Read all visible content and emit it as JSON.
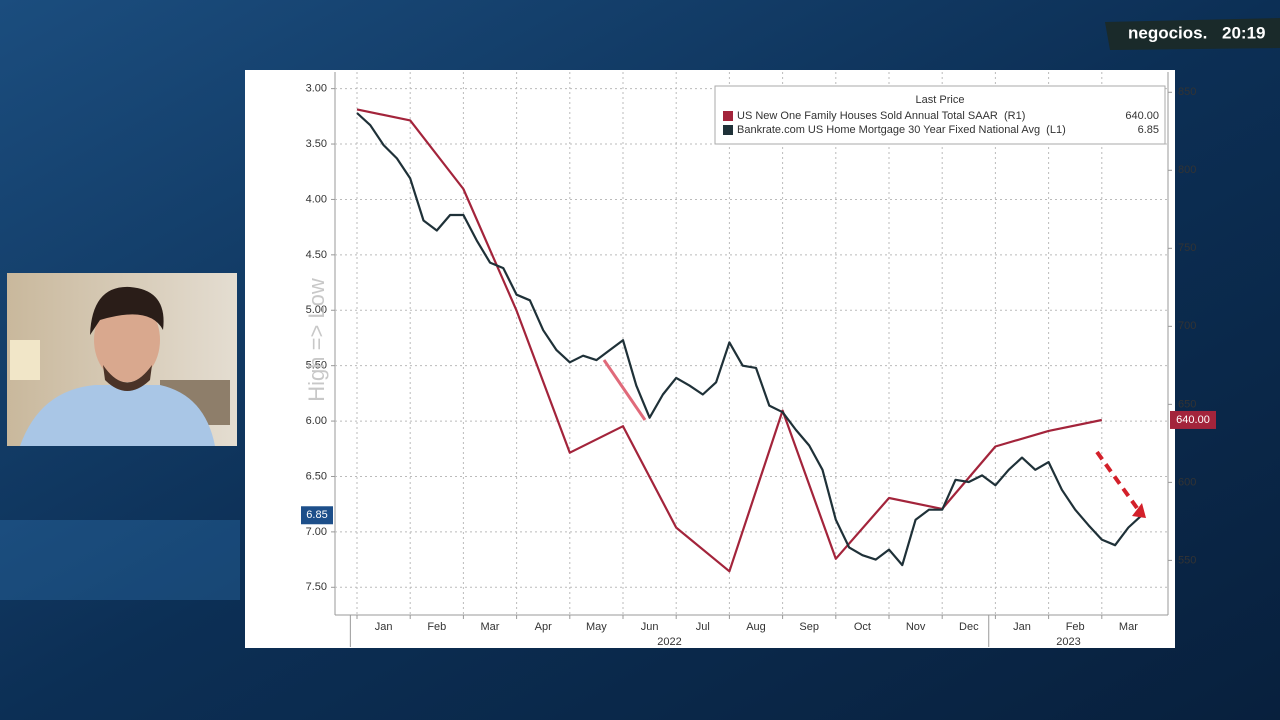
{
  "overlay": {
    "brand": "negocios.",
    "clock": "20:19"
  },
  "chart_data": {
    "type": "line",
    "legend_title": "Last Price",
    "legend": "top-right",
    "y_annotation": "High => Low",
    "categories": [
      null,
      null,
      "Jan",
      null,
      null,
      null,
      "Feb",
      null,
      null,
      null,
      "Mar",
      null,
      null,
      null,
      "Apr",
      null,
      null,
      null,
      "May",
      null,
      null,
      null,
      "Jun",
      null,
      null,
      null,
      "Jul",
      null,
      null,
      null,
      "Aug",
      null,
      null,
      null,
      "Sep",
      null,
      null,
      null,
      "Oct",
      null,
      null,
      null,
      "Nov",
      null,
      null,
      null,
      "Dec",
      null,
      null,
      null,
      "Jan",
      null,
      null,
      null,
      "Feb",
      null,
      null,
      null,
      "Mar",
      null
    ],
    "x_groups": [
      {
        "label": "2022",
        "from": 0,
        "to": 47
      },
      {
        "label": "2023",
        "from": 48,
        "to": 59
      }
    ],
    "series": [
      {
        "name": "US New One Family Houses Sold Annual Total SAAR  (R1)",
        "last_label": "640.00",
        "color": "#a3243b",
        "axis": "y2",
        "connect_gaps": true,
        "values": [
          839,
          null,
          null,
          null,
          832,
          null,
          null,
          null,
          788,
          null,
          null,
          null,
          710,
          null,
          null,
          null,
          619,
          null,
          null,
          null,
          636,
          null,
          null,
          null,
          571,
          null,
          null,
          null,
          543,
          null,
          null,
          null,
          646,
          null,
          null,
          null,
          551,
          null,
          null,
          null,
          590,
          null,
          null,
          null,
          583,
          null,
          null,
          null,
          623,
          null,
          null,
          null,
          633,
          null,
          null,
          null,
          640,
          null,
          null,
          null
        ]
      },
      {
        "name": "Bankrate.com US Home Mortgage 30 Year Fixed National Avg  (L1)",
        "last_label": "6.85",
        "color": "#1f3138",
        "axis": "y",
        "values": [
          3.22,
          3.33,
          3.51,
          3.63,
          3.81,
          4.19,
          4.28,
          4.14,
          4.14,
          4.37,
          4.57,
          4.62,
          4.86,
          4.91,
          5.18,
          5.36,
          5.47,
          5.41,
          5.45,
          5.36,
          5.27,
          5.68,
          5.97,
          5.76,
          5.61,
          5.68,
          5.76,
          5.65,
          5.29,
          5.5,
          5.52,
          5.86,
          5.92,
          6.08,
          6.22,
          6.44,
          6.89,
          7.14,
          7.21,
          7.25,
          7.16,
          7.3,
          6.89,
          6.8,
          6.8,
          6.53,
          6.55,
          6.49,
          6.58,
          6.44,
          6.33,
          6.44,
          6.37,
          6.62,
          6.8,
          6.94,
          7.07,
          7.12,
          6.96,
          6.85
        ]
      }
    ],
    "ylim": [
      2.85,
      7.75
    ],
    "y_inverted": true,
    "yticks": [
      {
        "value": 3,
        "label": "3.00"
      },
      {
        "value": 3.5,
        "label": "3.50"
      },
      {
        "value": 4,
        "label": "4.00"
      },
      {
        "value": 4.5,
        "label": "4.50"
      },
      {
        "value": 5,
        "label": "5.00"
      },
      {
        "value": 5.5,
        "label": "5.50"
      },
      {
        "value": 6,
        "label": "6.00"
      },
      {
        "value": 6.5,
        "label": "6.50"
      },
      {
        "value": 7,
        "label": "7.00"
      },
      {
        "value": 7.5,
        "label": "7.50"
      }
    ],
    "y2lim": [
      515,
      863
    ],
    "y2ticks": [
      550,
      600,
      650,
      700,
      750,
      800,
      850
    ],
    "grid": true
  }
}
